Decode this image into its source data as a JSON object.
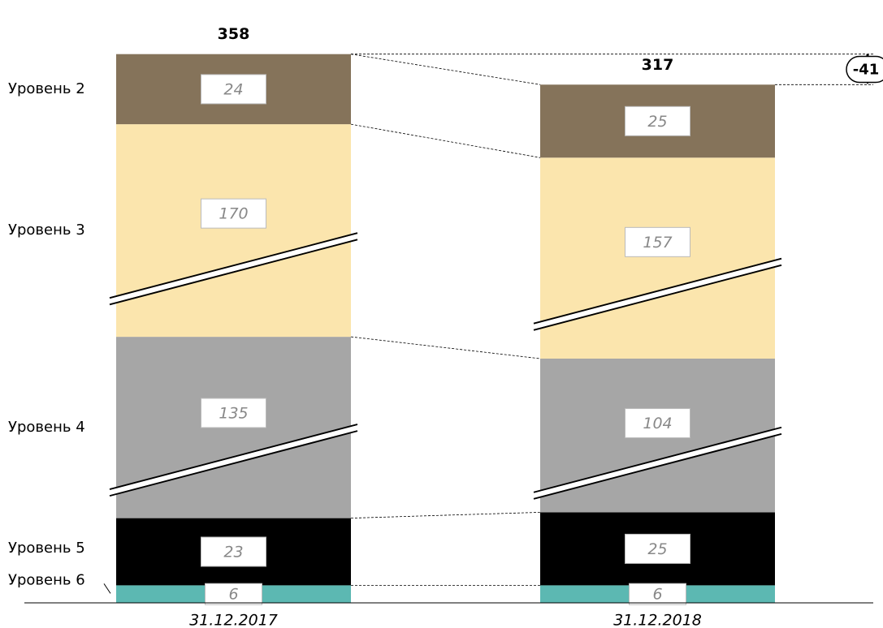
{
  "chart_data": {
    "type": "stacked-bar",
    "categories": [
      "31.12.2017",
      "31.12.2018"
    ],
    "series": [
      {
        "name": "Уровень 2",
        "color": "#85735a",
        "values": [
          24,
          25
        ]
      },
      {
        "name": "Уровень 3",
        "color": "#fbe5ad",
        "values": [
          170,
          157
        ]
      },
      {
        "name": "Уровень 4",
        "color": "#a6a6a6",
        "values": [
          135,
          104
        ]
      },
      {
        "name": "Уровень 5",
        "color": "#000000",
        "values": [
          23,
          25
        ]
      },
      {
        "name": "Уровень 6",
        "color": "#5cb8b2",
        "values": [
          6,
          6
        ]
      }
    ],
    "totals": [
      358,
      317
    ],
    "difference": -41
  }
}
